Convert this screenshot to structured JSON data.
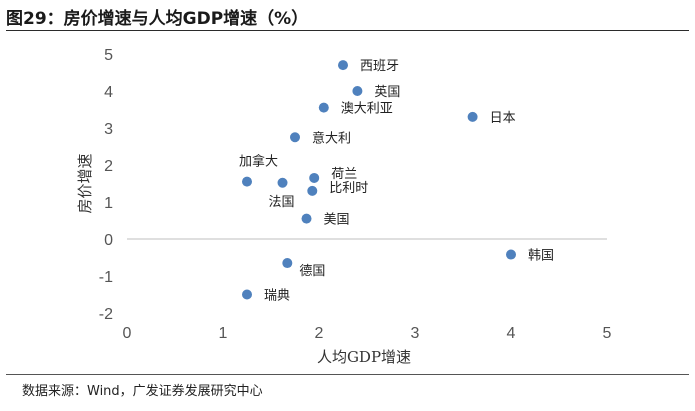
{
  "title": "图29：房价增速与人均GDP增速（%）",
  "source": "数据来源：Wind，广发证券发展研究中心",
  "chart_data": {
    "type": "scatter",
    "xlabel": "人均GDP增速",
    "ylabel": "房价增速",
    "xlim": [
      0,
      5
    ],
    "ylim": [
      -2,
      5
    ],
    "xticks": [
      "0",
      "1",
      "2",
      "3",
      "4",
      "5"
    ],
    "yticks": [
      "5",
      "4",
      "3",
      "2",
      "1",
      "0",
      "-1",
      "-2"
    ],
    "grid": false,
    "point_color": "#4F81BD",
    "points": [
      {
        "label": "西班牙",
        "x": 2.25,
        "y": 4.7
      },
      {
        "label": "英国",
        "x": 2.4,
        "y": 4.0
      },
      {
        "label": "澳大利亚",
        "x": 2.05,
        "y": 3.55
      },
      {
        "label": "日本",
        "x": 3.6,
        "y": 3.3
      },
      {
        "label": "意大利",
        "x": 1.75,
        "y": 2.75
      },
      {
        "label": "加拿大",
        "x": 1.25,
        "y": 1.55
      },
      {
        "label": "荷兰",
        "x": 1.95,
        "y": 1.65
      },
      {
        "label": "",
        "x": 1.62,
        "y": 1.52
      },
      {
        "label": "比利时",
        "x": 1.93,
        "y": 1.3
      },
      {
        "label": "法国",
        "x": 1.62,
        "y": 1.52
      },
      {
        "label": "美国",
        "x": 1.87,
        "y": 0.55
      },
      {
        "label": "韩国",
        "x": 4.0,
        "y": -0.42
      },
      {
        "label": "德国",
        "x": 1.67,
        "y": -0.65
      },
      {
        "label": "瑞典",
        "x": 1.25,
        "y": -1.5
      }
    ]
  }
}
